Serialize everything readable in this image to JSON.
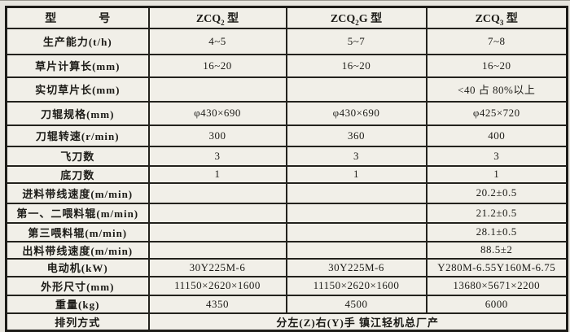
{
  "colors": {
    "ink": "#1c1b17",
    "paper": "#e7e5de",
    "cell_background": "#f1efe8"
  },
  "table": {
    "header": {
      "title_chars": [
        "型",
        "号"
      ],
      "models": [
        {
          "pre": "ZCQ",
          "sub": "2",
          "post": " 型"
        },
        {
          "pre": "ZCQ",
          "sub": "2",
          "post": "G 型"
        },
        {
          "pre": "ZCQ",
          "sub": "3",
          "post": " 型"
        }
      ]
    },
    "rows": [
      {
        "label": "生产能力(t/h)",
        "values": [
          "4~5",
          "5~7",
          "7~8"
        ]
      },
      {
        "label": "草片计算长(mm)",
        "values": [
          "16~20",
          "16~20",
          "16~20"
        ]
      },
      {
        "label": "实切草片长(mm)",
        "values": [
          "",
          "",
          "<40 占 80%以上"
        ]
      },
      {
        "label": "刀辊规格(mm)",
        "values": [
          "φ430×690",
          "φ430×690",
          "φ425×720"
        ]
      },
      {
        "label": "刀辊转速(r/min)",
        "values": [
          "300",
          "360",
          "400"
        ]
      },
      {
        "label": "飞刀数",
        "values": [
          "3",
          "3",
          "3"
        ]
      },
      {
        "label": "底刀数",
        "values": [
          "1",
          "1",
          "1"
        ]
      },
      {
        "label": "进料带线速度(m/min)",
        "values": [
          "",
          "",
          "20.2±0.5"
        ]
      },
      {
        "label": "第一、二喂料辊(m/min)",
        "values": [
          "",
          "",
          "21.2±0.5"
        ]
      },
      {
        "label": "第三喂料辊(m/min)",
        "values": [
          "",
          "",
          "28.1±0.5"
        ]
      },
      {
        "label": "出料带线速度(m/min)",
        "values": [
          "",
          "",
          "88.5±2"
        ]
      },
      {
        "label": "电动机(kW)",
        "values": [
          "30Y225M-6",
          "30Y225M-6",
          "Y280M-6.55Y160M-6.75"
        ]
      },
      {
        "label": "外形尺寸(mm)",
        "values": [
          "11150×2620×1600",
          "11150×2620×1600",
          "13680×5671×2200"
        ]
      },
      {
        "label": "重量(kg)",
        "values": [
          "4350",
          "4500",
          "6000"
        ]
      }
    ],
    "footer": {
      "label": "排列方式",
      "value": "分左(Z)右(Y)手  镇江轻机总厂产"
    }
  }
}
